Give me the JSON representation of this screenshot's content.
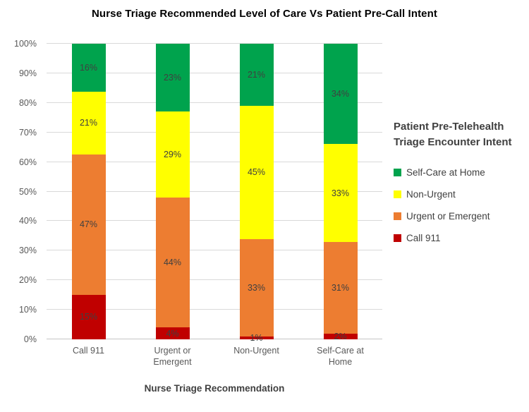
{
  "chart_data": {
    "type": "bar",
    "subtype": "100-percent-stacked-column",
    "title": "Nurse Triage Recommended Level of Care Vs Patient Pre-Call Intent",
    "xlabel": "Nurse Triage Recommendation",
    "ylabel": "",
    "ylim": [
      0,
      100
    ],
    "grid": true,
    "value_suffix": "%",
    "categories": [
      "Call 911",
      "Urgent or Emergent",
      "Non-Urgent",
      "Self-Care at Home"
    ],
    "series": [
      {
        "name": "Call 911",
        "color": "#C00000",
        "values": [
          15,
          4,
          1,
          2
        ]
      },
      {
        "name": "Urgent or Emergent",
        "color": "#ED7D31",
        "values": [
          47,
          44,
          33,
          31
        ]
      },
      {
        "name": "Non-Urgent",
        "color": "#FFFF00",
        "values": [
          21,
          29,
          45,
          33
        ]
      },
      {
        "name": "Self-Care at Home",
        "color": "#00A34D",
        "values": [
          16,
          23,
          21,
          34
        ]
      }
    ],
    "y_ticks": [
      "0%",
      "10%",
      "20%",
      "30%",
      "40%",
      "50%",
      "60%",
      "70%",
      "80%",
      "90%",
      "100%"
    ],
    "legend_position": "right",
    "legend_title": "Patient Pre-Telehealth Triage Encounter Intent",
    "legend_order": [
      "Self-Care at Home",
      "Non-Urgent",
      "Urgent or Emergent",
      "Call 911"
    ],
    "colors": {
      "gridline": "#D9D9D9",
      "axis_text": "#595959",
      "data_label_text": "#404040",
      "title_text": "#000000"
    }
  }
}
